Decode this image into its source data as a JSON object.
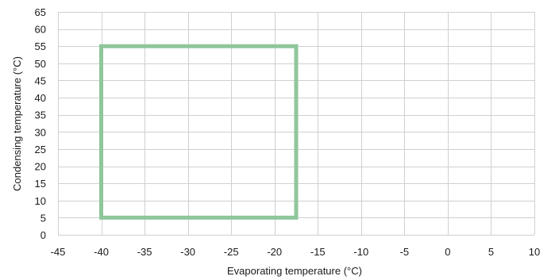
{
  "chart_data": {
    "type": "line",
    "title": "",
    "xlabel": "Evaporating temperature (°C)",
    "ylabel": "Condensing temperature (°C)",
    "xlim": [
      -45,
      10
    ],
    "ylim": [
      0,
      65
    ],
    "x_ticks": [
      -45,
      -40,
      -35,
      -30,
      -25,
      -20,
      -15,
      -10,
      -5,
      0,
      5,
      10
    ],
    "y_ticks": [
      0,
      5,
      10,
      15,
      20,
      25,
      30,
      35,
      40,
      45,
      50,
      55,
      60,
      65
    ],
    "grid": true,
    "legend": "none",
    "series": [
      {
        "color": "#8fc79a",
        "closed": true,
        "points": [
          {
            "x": -40,
            "y": 5
          },
          {
            "x": -40,
            "y": 55
          },
          {
            "x": -17.5,
            "y": 55
          },
          {
            "x": -17.5,
            "y": 5
          }
        ]
      }
    ]
  }
}
